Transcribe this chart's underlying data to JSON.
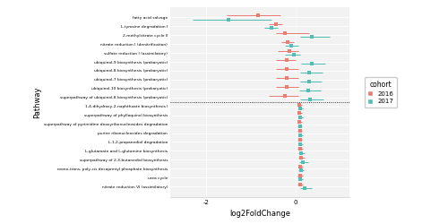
{
  "pathways": [
    "fatty acid salvage",
    "L-tyrosine degradation I",
    "2-methylcitrate cycle II",
    "nitrate reduction I (denitrification)",
    "sulfate reduction I (assimilatory)",
    "ubiquinol-9 biosynthesis (prokaryotic)",
    "ubiquinol-8 biosynthesis (prokaryotic)",
    "ubiquinol-7 biosynthesis (prokaryotic)",
    "ubiquinol-10 biosynthesis (prokaryotic)",
    "superpathway of ubiquinol-8 biosynthesis (prokaryotic)",
    "1,4-dihydroxy-2-naphthoate biosynthesis I",
    "superpathway of phylloquinol biosynthesis",
    "superpathway of pyrimidine deoxyribonucleosides degradation",
    "purine ribonucleosides degradation",
    "L-1,2-propanediol degradation",
    "L-glutamate and L-glutamine biosynthesis",
    "superpathway of 2,3-butanediol biosynthesis",
    "mono-trans, poly-cis decaprenyl phosphate biosynthesis",
    "urea cycle",
    "nitrate reduction VI (assimilatory)"
  ],
  "data_2016": [
    {
      "mean": -0.85,
      "lo": -1.55,
      "hi": -0.35
    },
    {
      "mean": -0.45,
      "lo": -0.6,
      "hi": -0.3
    },
    {
      "mean": -0.25,
      "lo": -0.45,
      "hi": 0.3
    },
    {
      "mean": -0.18,
      "lo": -0.32,
      "hi": -0.05
    },
    {
      "mean": -0.15,
      "lo": -0.4,
      "hi": 0.05
    },
    {
      "mean": -0.2,
      "lo": -0.45,
      "hi": 0.0
    },
    {
      "mean": -0.2,
      "lo": -0.45,
      "hi": 0.05
    },
    {
      "mean": -0.2,
      "lo": -0.45,
      "hi": 0.05
    },
    {
      "mean": -0.2,
      "lo": -0.45,
      "hi": 0.05
    },
    {
      "mean": -0.25,
      "lo": -0.6,
      "hi": 0.05
    },
    {
      "mean": 0.08,
      "lo": 0.03,
      "hi": 0.14
    },
    {
      "mean": 0.08,
      "lo": 0.03,
      "hi": 0.13
    },
    {
      "mean": 0.08,
      "lo": 0.03,
      "hi": 0.13
    },
    {
      "mean": 0.09,
      "lo": 0.04,
      "hi": 0.14
    },
    {
      "mean": 0.09,
      "lo": 0.04,
      "hi": 0.14
    },
    {
      "mean": 0.1,
      "lo": 0.04,
      "hi": 0.16
    },
    {
      "mean": 0.12,
      "lo": 0.06,
      "hi": 0.19
    },
    {
      "mean": 0.1,
      "lo": 0.05,
      "hi": 0.15
    },
    {
      "mean": 0.1,
      "lo": 0.04,
      "hi": 0.16
    },
    {
      "mean": 0.1,
      "lo": 0.04,
      "hi": 0.15
    }
  ],
  "data_2017": [
    {
      "mean": -1.5,
      "lo": -2.3,
      "hi": -0.55
    },
    {
      "mean": -0.55,
      "lo": -0.7,
      "hi": -0.4
    },
    {
      "mean": 0.35,
      "lo": 0.1,
      "hi": 0.75
    },
    {
      "mean": -0.1,
      "lo": -0.25,
      "hi": 0.05
    },
    {
      "mean": -0.05,
      "lo": -0.25,
      "hi": 0.1
    },
    {
      "mean": 0.35,
      "lo": 0.12,
      "hi": 0.65
    },
    {
      "mean": 0.3,
      "lo": 0.1,
      "hi": 0.6
    },
    {
      "mean": 0.3,
      "lo": 0.1,
      "hi": 0.58
    },
    {
      "mean": 0.28,
      "lo": 0.08,
      "hi": 0.55
    },
    {
      "mean": 0.32,
      "lo": 0.1,
      "hi": 0.62
    },
    {
      "mean": 0.1,
      "lo": 0.05,
      "hi": 0.16
    },
    {
      "mean": 0.1,
      "lo": 0.05,
      "hi": 0.15
    },
    {
      "mean": 0.09,
      "lo": 0.04,
      "hi": 0.14
    },
    {
      "mean": 0.1,
      "lo": 0.05,
      "hi": 0.15
    },
    {
      "mean": 0.1,
      "lo": 0.05,
      "hi": 0.16
    },
    {
      "mean": 0.12,
      "lo": 0.06,
      "hi": 0.2
    },
    {
      "mean": 0.16,
      "lo": 0.08,
      "hi": 0.28
    },
    {
      "mean": 0.11,
      "lo": 0.06,
      "hi": 0.17
    },
    {
      "mean": 0.1,
      "lo": 0.05,
      "hi": 0.16
    },
    {
      "mean": 0.2,
      "lo": 0.1,
      "hi": 0.35
    }
  ],
  "color_2016": "#E87D72",
  "color_2017": "#53BDB5",
  "divider_idx": 9,
  "xlabel": "log2FoldChange",
  "ylabel": "Pathway",
  "xlim": [
    -2.8,
    1.2
  ],
  "xticks": [
    -2,
    0
  ],
  "xticklabels": [
    "-2",
    "0"
  ],
  "bg_color": "#f2f2f2",
  "legend_title": "cohort",
  "legend_labels": [
    "2016",
    "2017"
  ]
}
